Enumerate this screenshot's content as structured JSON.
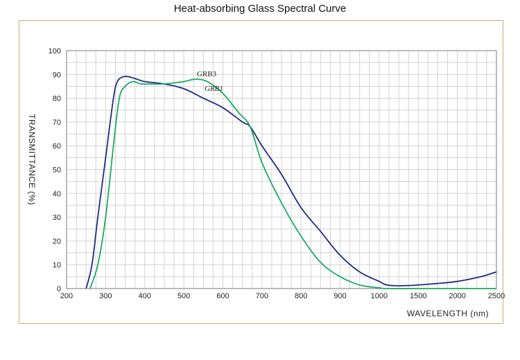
{
  "chart_data": {
    "type": "line",
    "title": "Heat-absorbing Glass Spectral Curve",
    "xlabel": "WAVELENGTH (nm)",
    "ylabel": "TRANSMITTANCE  (%)",
    "xlim": [
      200,
      2500
    ],
    "ylim": [
      0,
      100
    ],
    "x_breakpoints": [
      200,
      300,
      400,
      500,
      600,
      700,
      800,
      900,
      1000,
      1500,
      2000,
      2500
    ],
    "xticks": [
      "200",
      "300",
      "400",
      "500",
      "600",
      "700",
      "800",
      "900",
      "1000",
      "1500",
      "2000",
      "2500"
    ],
    "yticks": [
      "0",
      "10",
      "20",
      "30",
      "40",
      "50",
      "60",
      "70",
      "80",
      "90",
      "100"
    ],
    "grid": true,
    "series": [
      {
        "name": "GRB3",
        "color": "#1f2a80",
        "x": [
          250,
          265,
          280,
          300,
          320,
          330,
          345,
          360,
          380,
          400,
          450,
          500,
          550,
          600,
          650,
          670,
          700,
          750,
          800,
          850,
          900,
          950,
          1000,
          1100,
          1300,
          1700,
          2000,
          2300,
          2500
        ],
        "y": [
          0,
          10,
          30,
          55,
          80,
          87,
          89,
          89,
          88,
          87,
          86,
          84,
          80,
          76,
          70,
          68,
          60,
          48,
          34,
          24,
          14,
          7,
          3,
          1.5,
          1.2,
          2,
          3,
          5,
          7
        ]
      },
      {
        "name": "GRB1",
        "color": "#1aa868",
        "x": [
          260,
          280,
          300,
          320,
          335,
          350,
          370,
          390,
          420,
          450,
          500,
          530,
          560,
          600,
          640,
          670,
          700,
          750,
          800,
          850,
          900,
          950,
          1000,
          1100,
          1500,
          2000,
          2500
        ],
        "y": [
          0,
          10,
          30,
          60,
          80,
          85,
          87,
          86,
          86,
          86,
          87,
          88,
          87,
          82,
          74,
          68,
          53,
          36,
          22,
          11,
          5,
          1.5,
          0.3,
          0,
          0,
          0,
          0
        ]
      }
    ]
  }
}
